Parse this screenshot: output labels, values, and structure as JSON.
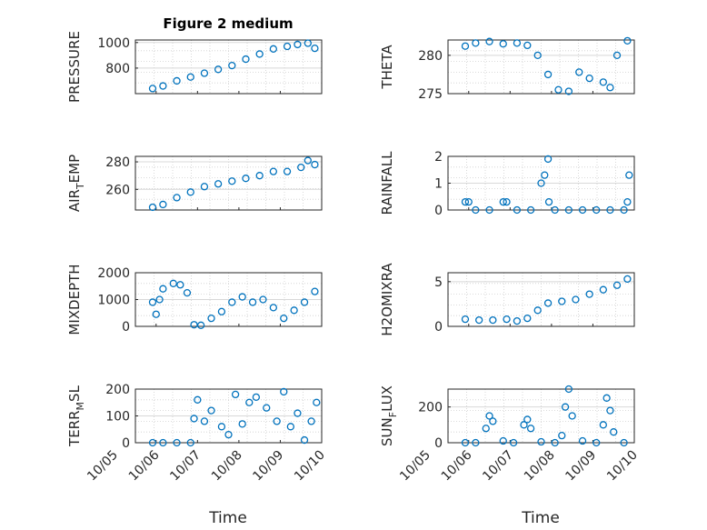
{
  "figure": {
    "title": "Figure 2 medium",
    "xlabel": "Time"
  },
  "colors": {
    "marker": "#0072BD",
    "axis": "#262626",
    "grid": "#cfcfcf"
  },
  "chart_data": [
    {
      "type": "scatter",
      "ylabel_main": "PRESSURE",
      "ylabel_sub": "",
      "ylabel_tail": "",
      "xlim": [
        "10/05 12:00",
        "10/10 00:00"
      ],
      "ylim": [
        600,
        1020
      ],
      "yticks": [
        800,
        1000
      ],
      "xticks": [],
      "series": [
        {
          "x": [
            "10/05 22:00",
            "10/06 04:00",
            "10/06 12:00",
            "10/06 20:00",
            "10/07 04:00",
            "10/07 12:00",
            "10/07 20:00",
            "10/08 04:00",
            "10/08 12:00",
            "10/08 20:00",
            "10/09 04:00",
            "10/09 10:00",
            "10/09 16:00",
            "10/09 20:00"
          ],
          "y": [
            640,
            660,
            700,
            730,
            760,
            790,
            820,
            870,
            910,
            950,
            970,
            985,
            995,
            955
          ]
        }
      ]
    },
    {
      "type": "scatter",
      "ylabel_main": "THETA",
      "ylabel_sub": "",
      "ylabel_tail": "",
      "xlim": [
        "10/05 12:00",
        "10/10 00:00"
      ],
      "ylim": [
        275,
        282
      ],
      "yticks": [
        275,
        280
      ],
      "xticks": [],
      "series": [
        {
          "x": [
            "10/05 22:00",
            "10/06 04:00",
            "10/06 12:00",
            "10/06 20:00",
            "10/07 04:00",
            "10/07 10:00",
            "10/07 16:00",
            "10/07 22:00",
            "10/08 04:00",
            "10/08 10:00",
            "10/08 16:00",
            "10/08 22:00",
            "10/09 06:00",
            "10/09 10:00",
            "10/09 14:00",
            "10/09 20:00"
          ],
          "y": [
            281.2,
            281.6,
            281.8,
            281.5,
            281.6,
            281.3,
            280.0,
            277.5,
            275.5,
            275.3,
            277.8,
            277.0,
            276.5,
            275.8,
            280.0,
            281.9
          ]
        }
      ]
    },
    {
      "type": "scatter",
      "ylabel_main": "AIR",
      "ylabel_sub": "T",
      "ylabel_tail": "EMP",
      "xlim": [
        "10/05 12:00",
        "10/10 00:00"
      ],
      "ylim": [
        245,
        284
      ],
      "yticks": [
        260,
        280
      ],
      "xticks": [],
      "series": [
        {
          "x": [
            "10/05 22:00",
            "10/06 04:00",
            "10/06 12:00",
            "10/06 20:00",
            "10/07 04:00",
            "10/07 12:00",
            "10/07 20:00",
            "10/08 04:00",
            "10/08 12:00",
            "10/08 20:00",
            "10/09 04:00",
            "10/09 12:00",
            "10/09 16:00",
            "10/09 20:00"
          ],
          "y": [
            247,
            249,
            254,
            258,
            262,
            264,
            266,
            268,
            270,
            273,
            273,
            276,
            281,
            278
          ]
        }
      ]
    },
    {
      "type": "scatter",
      "ylabel_main": "RAINFALL",
      "ylabel_sub": "",
      "ylabel_tail": "",
      "xlim": [
        "10/05 12:00",
        "10/10 00:00"
      ],
      "ylim": [
        0,
        2
      ],
      "yticks": [
        0,
        1,
        2
      ],
      "xticks": [],
      "series": [
        {
          "x": [
            "10/05 22:00",
            "10/06 00:00",
            "10/06 04:00",
            "10/06 12:00",
            "10/06 20:00",
            "10/06 22:00",
            "10/07 04:00",
            "10/07 12:00",
            "10/07 18:00",
            "10/07 20:00",
            "10/07 22:00",
            "10/07 22:30",
            "10/08 02:00",
            "10/08 10:00",
            "10/08 18:00",
            "10/09 02:00",
            "10/09 10:00",
            "10/09 18:00",
            "10/09 20:00",
            "10/09 21:00"
          ],
          "y": [
            0.3,
            0.3,
            0,
            0,
            0.3,
            0.3,
            0,
            0,
            1.0,
            1.3,
            1.9,
            0.3,
            0,
            0,
            0,
            0,
            0,
            0,
            0.3,
            1.3
          ]
        }
      ]
    },
    {
      "type": "scatter",
      "ylabel_main": "MIXDEPTH",
      "ylabel_sub": "",
      "ylabel_tail": "",
      "xlim": [
        "10/05 12:00",
        "10/10 00:00"
      ],
      "ylim": [
        0,
        2000
      ],
      "yticks": [
        0,
        1000,
        2000
      ],
      "xticks": [],
      "series": [
        {
          "x": [
            "10/05 22:00",
            "10/06 00:00",
            "10/06 02:00",
            "10/06 04:00",
            "10/06 10:00",
            "10/06 14:00",
            "10/06 18:00",
            "10/06 22:00",
            "10/07 02:00",
            "10/07 08:00",
            "10/07 14:00",
            "10/07 20:00",
            "10/08 02:00",
            "10/08 08:00",
            "10/08 14:00",
            "10/08 20:00",
            "10/09 02:00",
            "10/09 08:00",
            "10/09 14:00",
            "10/09 20:00"
          ],
          "y": [
            900,
            450,
            1000,
            1400,
            1600,
            1550,
            1250,
            60,
            40,
            300,
            550,
            900,
            1100,
            900,
            1000,
            700,
            300,
            600,
            900,
            1300
          ]
        }
      ]
    },
    {
      "type": "scatter",
      "ylabel_main": "H2OMIXRA",
      "ylabel_sub": "",
      "ylabel_tail": "",
      "xlim": [
        "10/05 12:00",
        "10/10 00:00"
      ],
      "ylim": [
        0,
        6
      ],
      "yticks": [
        0,
        5
      ],
      "xticks": [],
      "series": [
        {
          "x": [
            "10/05 22:00",
            "10/06 06:00",
            "10/06 14:00",
            "10/06 22:00",
            "10/07 04:00",
            "10/07 10:00",
            "10/07 16:00",
            "10/07 22:00",
            "10/08 06:00",
            "10/08 14:00",
            "10/08 22:00",
            "10/09 06:00",
            "10/09 14:00",
            "10/09 20:00"
          ],
          "y": [
            0.8,
            0.7,
            0.7,
            0.8,
            0.6,
            0.9,
            1.8,
            2.6,
            2.8,
            3.0,
            3.6,
            4.1,
            4.6,
            5.3
          ]
        }
      ]
    },
    {
      "type": "scatter",
      "ylabel_main": "TERR",
      "ylabel_sub": "M",
      "ylabel_tail": "SL",
      "xlim": [
        "10/05 12:00",
        "10/10 00:00"
      ],
      "ylim": [
        0,
        200
      ],
      "yticks": [
        0,
        100,
        200
      ],
      "xticks": [
        "10/05",
        "10/06",
        "10/07",
        "10/08",
        "10/09",
        "10/10"
      ],
      "series": [
        {
          "x": [
            "10/05 22:00",
            "10/06 04:00",
            "10/06 12:00",
            "10/06 20:00",
            "10/06 22:00",
            "10/07 00:00",
            "10/07 04:00",
            "10/07 08:00",
            "10/07 14:00",
            "10/07 18:00",
            "10/07 22:00",
            "10/08 02:00",
            "10/08 06:00",
            "10/08 10:00",
            "10/08 16:00",
            "10/08 22:00",
            "10/09 02:00",
            "10/09 06:00",
            "10/09 10:00",
            "10/09 14:00",
            "10/09 18:00",
            "10/09 21:00"
          ],
          "y": [
            0,
            0,
            0,
            0,
            90,
            160,
            80,
            120,
            60,
            30,
            180,
            70,
            150,
            170,
            130,
            80,
            190,
            60,
            110,
            10,
            80,
            150
          ]
        }
      ]
    },
    {
      "type": "scatter",
      "ylabel_main": "SUN",
      "ylabel_sub": "F",
      "ylabel_tail": "LUX",
      "xlim": [
        "10/05 12:00",
        "10/10 00:00"
      ],
      "ylim": [
        0,
        300
      ],
      "yticks": [
        0,
        200
      ],
      "xticks": [
        "10/05",
        "10/06",
        "10/07",
        "10/08",
        "10/09",
        "10/10"
      ],
      "series": [
        {
          "x": [
            "10/05 22:00",
            "10/06 04:00",
            "10/06 10:00",
            "10/06 12:00",
            "10/06 14:00",
            "10/06 20:00",
            "10/07 02:00",
            "10/07 08:00",
            "10/07 10:00",
            "10/07 12:00",
            "10/07 18:00",
            "10/08 02:00",
            "10/08 06:00",
            "10/08 08:00",
            "10/08 10:00",
            "10/08 12:00",
            "10/08 18:00",
            "10/09 02:00",
            "10/09 06:00",
            "10/09 08:00",
            "10/09 10:00",
            "10/09 12:00",
            "10/09 18:00"
          ],
          "y": [
            0,
            0,
            80,
            150,
            120,
            10,
            0,
            100,
            130,
            80,
            5,
            0,
            40,
            200,
            300,
            150,
            10,
            0,
            100,
            250,
            180,
            60,
            0
          ]
        }
      ]
    }
  ]
}
